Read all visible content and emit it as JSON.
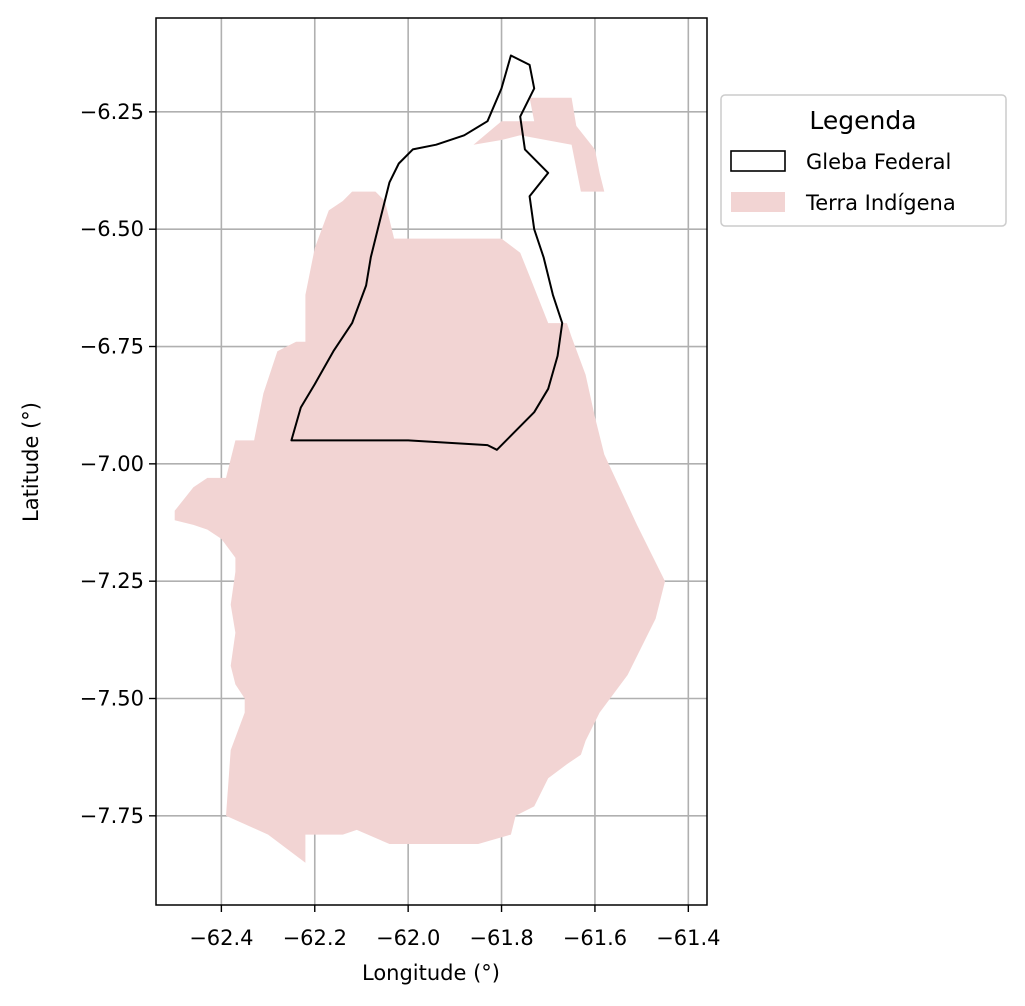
{
  "chart_data": {
    "type": "map",
    "xlabel": "Longitude (°)",
    "ylabel": "Latitude (°)",
    "xlim": [
      -62.54,
      -61.36
    ],
    "ylim": [
      -7.94,
      -6.05
    ],
    "xticks": [
      -62.4,
      -62.2,
      -62.0,
      -61.8,
      -61.6,
      -61.4
    ],
    "xtick_labels": [
      "−62.4",
      "−62.2",
      "−62.0",
      "−61.8",
      "−61.6",
      "−61.4"
    ],
    "yticks": [
      -6.25,
      -6.5,
      -6.75,
      -7.0,
      -7.25,
      -7.5,
      -7.75
    ],
    "ytick_labels": [
      "−6.25",
      "−6.50",
      "−6.75",
      "−7.00",
      "−7.25",
      "−7.50",
      "−7.75"
    ],
    "grid": true,
    "legend": {
      "title": "Legenda",
      "placement": "outside-upper-right",
      "entries": [
        {
          "label": "Gleba Federal",
          "style": "outline"
        },
        {
          "label": "Terra Indígena",
          "style": "fill"
        }
      ]
    },
    "layers": [
      {
        "name": "Terra Indígena",
        "fill": "#f2d4d3",
        "stroke": "none",
        "polygons": [
          [
            [
              -62.5,
              -7.1
            ],
            [
              -62.46,
              -7.05
            ],
            [
              -62.43,
              -7.03
            ],
            [
              -62.39,
              -7.03
            ],
            [
              -62.37,
              -6.95
            ],
            [
              -62.33,
              -6.95
            ],
            [
              -62.31,
              -6.85
            ],
            [
              -62.28,
              -6.76
            ],
            [
              -62.24,
              -6.74
            ],
            [
              -62.22,
              -6.74
            ],
            [
              -62.22,
              -6.64
            ],
            [
              -62.2,
              -6.54
            ],
            [
              -62.17,
              -6.46
            ],
            [
              -62.14,
              -6.44
            ],
            [
              -62.12,
              -6.42
            ],
            [
              -62.07,
              -6.42
            ],
            [
              -62.05,
              -6.44
            ],
            [
              -62.04,
              -6.48
            ],
            [
              -62.03,
              -6.52
            ],
            [
              -61.9,
              -6.52
            ],
            [
              -61.8,
              -6.52
            ],
            [
              -61.76,
              -6.55
            ],
            [
              -61.74,
              -6.6
            ],
            [
              -61.72,
              -6.65
            ],
            [
              -61.7,
              -6.7
            ],
            [
              -61.66,
              -6.7
            ],
            [
              -61.65,
              -6.73
            ],
            [
              -61.62,
              -6.81
            ],
            [
              -61.6,
              -6.9
            ],
            [
              -61.58,
              -6.98
            ],
            [
              -61.51,
              -7.13
            ],
            [
              -61.45,
              -7.25
            ],
            [
              -61.47,
              -7.33
            ],
            [
              -61.53,
              -7.45
            ],
            [
              -61.59,
              -7.53
            ],
            [
              -61.62,
              -7.59
            ],
            [
              -61.63,
              -7.62
            ],
            [
              -61.66,
              -7.64
            ],
            [
              -61.7,
              -7.67
            ],
            [
              -61.73,
              -7.73
            ],
            [
              -61.77,
              -7.75
            ],
            [
              -61.78,
              -7.79
            ],
            [
              -61.85,
              -7.81
            ],
            [
              -62.04,
              -7.81
            ],
            [
              -62.11,
              -7.78
            ],
            [
              -62.14,
              -7.79
            ],
            [
              -62.22,
              -7.79
            ],
            [
              -62.22,
              -7.85
            ],
            [
              -62.3,
              -7.79
            ],
            [
              -62.39,
              -7.75
            ],
            [
              -62.38,
              -7.61
            ],
            [
              -62.35,
              -7.53
            ],
            [
              -62.35,
              -7.5
            ],
            [
              -62.37,
              -7.47
            ],
            [
              -62.38,
              -7.43
            ],
            [
              -62.37,
              -7.36
            ],
            [
              -62.38,
              -7.3
            ],
            [
              -62.37,
              -7.23
            ],
            [
              -62.37,
              -7.2
            ],
            [
              -62.4,
              -7.16
            ],
            [
              -62.43,
              -7.14
            ],
            [
              -62.46,
              -7.13
            ],
            [
              -62.5,
              -7.12
            ]
          ],
          [
            [
              -61.86,
              -6.32
            ],
            [
              -61.8,
              -6.27
            ],
            [
              -61.73,
              -6.27
            ],
            [
              -61.74,
              -6.22
            ],
            [
              -61.65,
              -6.22
            ],
            [
              -61.64,
              -6.28
            ],
            [
              -61.6,
              -6.33
            ],
            [
              -61.59,
              -6.38
            ],
            [
              -61.58,
              -6.42
            ],
            [
              -61.63,
              -6.42
            ],
            [
              -61.65,
              -6.32
            ],
            [
              -61.76,
              -6.3
            ],
            [
              -61.8,
              -6.31
            ]
          ]
        ]
      },
      {
        "name": "Gleba Federal",
        "fill": "none",
        "stroke": "#000000",
        "polygons": [
          [
            [
              -62.25,
              -6.95
            ],
            [
              -62.23,
              -6.88
            ],
            [
              -62.2,
              -6.83
            ],
            [
              -62.16,
              -6.76
            ],
            [
              -62.12,
              -6.7
            ],
            [
              -62.09,
              -6.62
            ],
            [
              -62.08,
              -6.56
            ],
            [
              -62.06,
              -6.48
            ],
            [
              -62.04,
              -6.4
            ],
            [
              -62.02,
              -6.36
            ],
            [
              -61.99,
              -6.33
            ],
            [
              -61.94,
              -6.32
            ],
            [
              -61.88,
              -6.3
            ],
            [
              -61.83,
              -6.27
            ],
            [
              -61.8,
              -6.2
            ],
            [
              -61.78,
              -6.13
            ],
            [
              -61.74,
              -6.15
            ],
            [
              -61.73,
              -6.2
            ],
            [
              -61.76,
              -6.26
            ],
            [
              -61.75,
              -6.33
            ],
            [
              -61.7,
              -6.38
            ],
            [
              -61.74,
              -6.43
            ],
            [
              -61.73,
              -6.5
            ],
            [
              -61.71,
              -6.56
            ],
            [
              -61.69,
              -6.64
            ],
            [
              -61.67,
              -6.7
            ],
            [
              -61.68,
              -6.77
            ],
            [
              -61.7,
              -6.84
            ],
            [
              -61.73,
              -6.89
            ],
            [
              -61.78,
              -6.94
            ],
            [
              -61.81,
              -6.97
            ],
            [
              -61.83,
              -6.96
            ],
            [
              -62.0,
              -6.95
            ]
          ]
        ]
      }
    ]
  }
}
